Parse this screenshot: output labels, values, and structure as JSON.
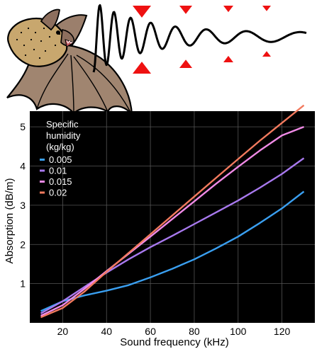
{
  "illustration": {
    "subject": "bat",
    "echolocation_wave_color": "#000000",
    "attenuation_arrow_color": "#ee1111"
  },
  "chart_data": {
    "type": "line",
    "title": "",
    "xlabel": "Sound frequency (kHz)",
    "ylabel": "Absorption (dB/m)",
    "xlim": [
      5,
      135
    ],
    "ylim": [
      0,
      5.4
    ],
    "x_ticks": [
      20,
      40,
      60,
      80,
      100,
      120
    ],
    "y_ticks": [
      1,
      2,
      3,
      4,
      5
    ],
    "grid": true,
    "background": "#000000",
    "legend": {
      "title_lines": [
        "Specific",
        "humidity",
        "(kg/kg)"
      ],
      "placement": "top-left"
    },
    "x": [
      10,
      20,
      30,
      40,
      50,
      60,
      70,
      80,
      90,
      100,
      110,
      120,
      130
    ],
    "series": [
      {
        "name": "0.005",
        "color": "#3a9ff0",
        "values": [
          0.3,
          0.55,
          0.7,
          0.82,
          0.96,
          1.16,
          1.38,
          1.62,
          1.9,
          2.2,
          2.55,
          2.92,
          3.35
        ]
      },
      {
        "name": "0.01",
        "color": "#a879ee",
        "values": [
          0.24,
          0.55,
          0.92,
          1.28,
          1.62,
          1.93,
          2.22,
          2.52,
          2.82,
          3.12,
          3.45,
          3.8,
          4.2
        ]
      },
      {
        "name": "0.015",
        "color": "#f08ae6",
        "values": [
          0.18,
          0.45,
          0.87,
          1.32,
          1.76,
          2.2,
          2.65,
          3.1,
          3.55,
          3.98,
          4.4,
          4.78,
          5.0
        ]
      },
      {
        "name": "0.02",
        "color": "#f27a5e",
        "values": [
          0.14,
          0.38,
          0.8,
          1.3,
          1.78,
          2.26,
          2.74,
          3.22,
          3.7,
          4.18,
          4.65,
          5.1,
          5.55
        ]
      }
    ]
  }
}
